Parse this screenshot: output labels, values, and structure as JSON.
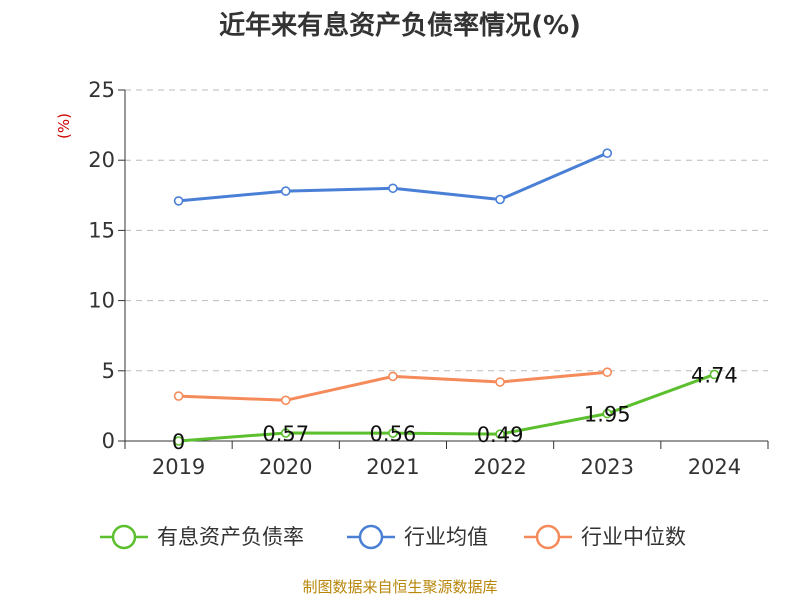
{
  "chart_data": {
    "type": "line",
    "title": "近年来有息资产负债率情况(%)",
    "ylabel": "(%)",
    "xlabel": "",
    "categories": [
      "2019",
      "2020",
      "2021",
      "2022",
      "2023",
      "2024"
    ],
    "ylim": [
      0,
      25
    ],
    "yticks": [
      0,
      5,
      10,
      15,
      20,
      25
    ],
    "grid": true,
    "legend_position": "bottom",
    "series": [
      {
        "name": "有息资产负债率",
        "color": "#5bbf2e",
        "values": [
          0,
          0.57,
          0.56,
          0.49,
          1.95,
          4.74
        ],
        "labels": [
          "0",
          "0.57",
          "0.56",
          "0.49",
          "1.95",
          "4.74"
        ]
      },
      {
        "name": "行业均值",
        "color": "#4a7fd6",
        "values": [
          17.1,
          17.8,
          18.0,
          17.2,
          20.5,
          null
        ]
      },
      {
        "name": "行业中位数",
        "color": "#f58b5b",
        "values": [
          3.2,
          2.9,
          4.6,
          4.2,
          4.9,
          null
        ]
      }
    ],
    "source": "制图数据来自恒生聚源数据库"
  }
}
